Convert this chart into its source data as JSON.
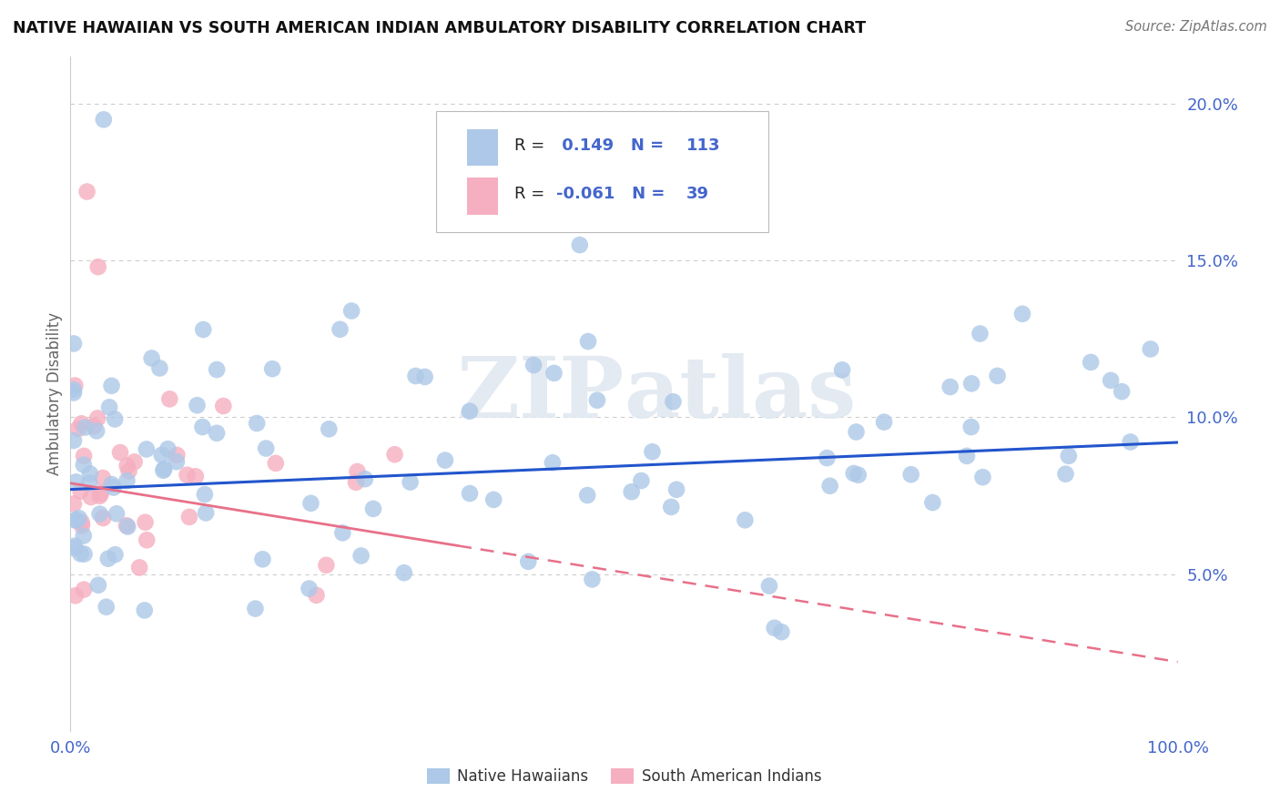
{
  "title": "NATIVE HAWAIIAN VS SOUTH AMERICAN INDIAN AMBULATORY DISABILITY CORRELATION CHART",
  "source": "Source: ZipAtlas.com",
  "ylabel": "Ambulatory Disability",
  "watermark_zip": "ZIP",
  "watermark_atlas": "atlas",
  "legend_v1": "0.149",
  "legend_nv1": "113",
  "legend_v2": "-0.061",
  "legend_nv2": "39",
  "blue_color": "#adc8e8",
  "pink_color": "#f5afc0",
  "blue_line_color": "#2255cc",
  "pink_line_color": "#e8708a",
  "axis_tick_color": "#4466cc",
  "title_color": "#111111",
  "grid_color": "#cccccc",
  "background_color": "#ffffff",
  "xlim": [
    0.0,
    100.0
  ],
  "ylim": [
    0.0,
    0.215
  ],
  "yticks": [
    0.05,
    0.1,
    0.15,
    0.2
  ],
  "ytick_labels": [
    "5.0%",
    "10.0%",
    "15.0%",
    "20.0%"
  ],
  "blue_trend_start_y": 0.077,
  "blue_trend_end_y": 0.092,
  "pink_trend_start_y": 0.079,
  "pink_trend_end_y": 0.022
}
